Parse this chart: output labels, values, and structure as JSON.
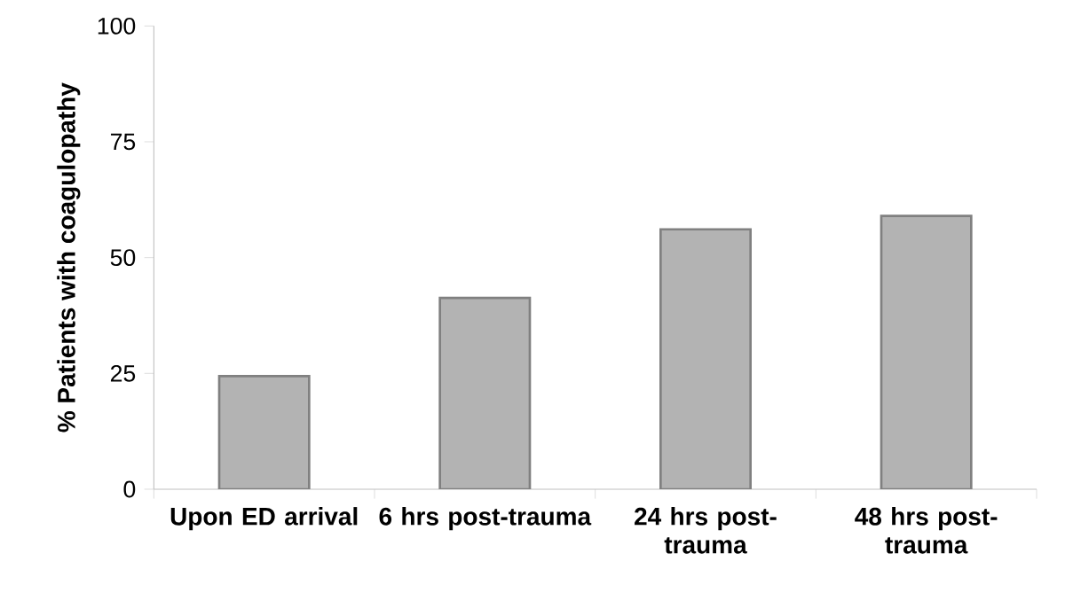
{
  "chart_data": {
    "type": "bar",
    "ylabel": "% Patients with coagulopathy",
    "categories": [
      "Upon ED arrival",
      "6 hrs post-trauma",
      "24 hrs post-trauma",
      "48 hrs post-trauma"
    ],
    "values": [
      24.4,
      41.3,
      56.1,
      59.0
    ],
    "color": "#b3b3b3",
    "ylim": [
      0,
      100
    ],
    "yticks": [
      0,
      25,
      50,
      75,
      100
    ]
  }
}
